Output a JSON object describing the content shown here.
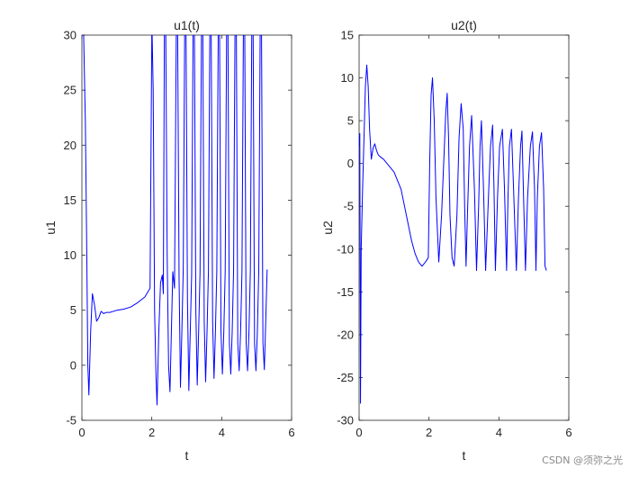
{
  "watermark": "CSDN @须弥之光",
  "chart_data": [
    {
      "type": "line",
      "title": "u1(t)",
      "xlabel": "t",
      "ylabel": "u1",
      "xlim": [
        0,
        6
      ],
      "ylim": [
        -5,
        30
      ],
      "xticks": [
        0,
        2,
        4,
        6
      ],
      "yticks": [
        -5,
        0,
        5,
        10,
        15,
        20,
        25,
        30
      ],
      "grid": false,
      "line_color": "#0000ff",
      "series": [
        {
          "x": [
            0,
            0.02,
            0.05,
            0.1,
            0.14,
            0.17,
            0.2,
            0.25,
            0.3,
            0.36,
            0.42,
            0.48,
            0.55,
            0.62,
            0.7,
            0.8,
            0.9,
            1.0,
            1.2,
            1.4,
            1.6,
            1.8,
            1.95,
            2.0,
            2.01,
            2.04,
            2.08,
            2.12,
            2.15,
            2.2,
            2.25,
            2.3,
            2.33,
            2.36,
            2.4,
            2.44,
            2.48,
            2.52,
            2.56,
            2.6,
            2.65,
            2.7,
            2.74,
            2.78,
            2.82,
            2.86,
            2.9,
            2.94,
            2.98,
            3.02,
            3.06,
            3.1,
            3.14,
            3.18,
            3.22,
            3.26,
            3.3,
            3.34,
            3.38,
            3.42,
            3.46,
            3.5,
            3.54,
            3.58,
            3.62,
            3.66,
            3.7,
            3.74,
            3.78,
            3.82,
            3.86,
            3.9,
            3.94,
            3.98,
            4.02,
            4.06,
            4.1,
            4.14,
            4.18,
            4.22,
            4.26,
            4.3,
            4.34,
            4.38,
            4.42,
            4.46,
            4.5,
            4.54,
            4.58,
            4.62,
            4.66,
            4.7,
            4.74,
            4.78,
            4.82,
            4.86,
            4.9,
            4.94,
            4.98,
            5.02,
            5.06,
            5.1,
            5.14,
            5.18,
            5.22,
            5.26,
            5.3
          ],
          "y": [
            30,
            30,
            30,
            22,
            10,
            0,
            -2.7,
            3,
            6.5,
            5.5,
            4.0,
            4.3,
            4.9,
            4.7,
            4.8,
            4.8,
            4.9,
            5.0,
            5.1,
            5.3,
            5.7,
            6.2,
            7.0,
            30,
            30,
            25,
            5,
            -1,
            -3.6,
            3,
            7.5,
            8.2,
            6.5,
            30,
            30,
            10,
            0,
            -2.4,
            3,
            8.5,
            7,
            30,
            30,
            8,
            -2,
            3,
            8.8,
            30,
            30,
            6,
            -2.3,
            3,
            8.2,
            30,
            30,
            5,
            -1.8,
            3,
            8.4,
            30,
            30,
            4,
            -1.5,
            3,
            8.5,
            30,
            30,
            4,
            -1.2,
            3,
            8.6,
            30,
            30,
            3,
            -0.8,
            3,
            8.5,
            30,
            30,
            2,
            -0.8,
            3,
            8.6,
            30,
            30,
            2,
            -0.5,
            3,
            8.5,
            30,
            30,
            2,
            -0.5,
            3,
            8.6,
            30,
            30,
            2,
            -0.5,
            3,
            8.5,
            30,
            30,
            2,
            -0.4,
            4,
            8.7
          ]
        }
      ]
    },
    {
      "type": "line",
      "title": "u2(t)",
      "xlabel": "t",
      "ylabel": "u2",
      "xlim": [
        0,
        6
      ],
      "ylim": [
        -30,
        15
      ],
      "xticks": [
        0,
        2,
        4,
        6
      ],
      "yticks": [
        -30,
        -25,
        -20,
        -15,
        -10,
        -5,
        0,
        5,
        10,
        15
      ],
      "grid": false,
      "line_color": "#0000ff",
      "series": [
        {
          "x": [
            0,
            0.02,
            0.04,
            0.06,
            0.1,
            0.14,
            0.18,
            0.22,
            0.26,
            0.3,
            0.35,
            0.4,
            0.45,
            0.5,
            0.55,
            0.6,
            0.7,
            0.8,
            1.0,
            1.2,
            1.4,
            1.5,
            1.6,
            1.7,
            1.8,
            1.9,
            1.98,
            2.02,
            2.06,
            2.1,
            2.15,
            2.2,
            2.28,
            2.36,
            2.42,
            2.48,
            2.52,
            2.56,
            2.6,
            2.66,
            2.72,
            2.8,
            2.86,
            2.92,
            2.98,
            3.02,
            3.06,
            3.1,
            3.16,
            3.22,
            3.3,
            3.36,
            3.42,
            3.46,
            3.5,
            3.56,
            3.62,
            3.7,
            3.76,
            3.82,
            3.86,
            3.9,
            3.96,
            4.02,
            4.1,
            4.16,
            4.22,
            4.26,
            4.3,
            4.36,
            4.42,
            4.5,
            4.56,
            4.62,
            4.66,
            4.7,
            4.76,
            4.82,
            4.9,
            4.96,
            5.02,
            5.06,
            5.1,
            5.16,
            5.22,
            5.28,
            5.32,
            5.36
          ],
          "y": [
            2,
            3.5,
            -28,
            -10,
            -3,
            3,
            9,
            11.5,
            9,
            4,
            0.5,
            1.8,
            2.3,
            1.5,
            1,
            0.8,
            0.5,
            0,
            -1,
            -3,
            -7,
            -9,
            -10.5,
            -11.5,
            -12,
            -11.5,
            -11,
            0,
            8,
            10,
            5,
            -4,
            -11.5,
            -6,
            0,
            6,
            8.2,
            3,
            -6,
            -11,
            -12,
            -6,
            3,
            7,
            4,
            -5,
            -12,
            -6,
            2,
            5.6,
            -3,
            -12.5,
            -5,
            2,
            5,
            -3,
            -12.5,
            -4,
            2,
            4.5,
            -3,
            -12.5,
            -4,
            2,
            4,
            -3,
            -12.5,
            -4,
            2,
            4,
            -3,
            -12.5,
            -4,
            2,
            3.8,
            -3,
            -12.5,
            -4,
            2,
            3.7,
            -3,
            -12.5,
            -4,
            2,
            3.6,
            -3,
            -12,
            -12.5
          ]
        }
      ]
    }
  ]
}
